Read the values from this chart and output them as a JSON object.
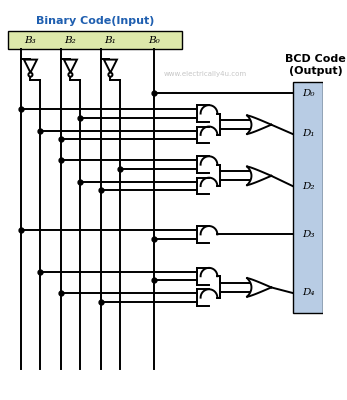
{
  "title": "Binary Code(Input)",
  "output_title": "BCD Code\n(Output)",
  "watermark": "www.electrically4u.com",
  "input_labels": [
    "B₃",
    "B₂",
    "B₁",
    "B₀"
  ],
  "output_labels": [
    "D₀",
    "D₁",
    "D₂",
    "D₃",
    "D₄"
  ],
  "bg_color": "#ffffff",
  "input_box_color": "#dde8aa",
  "output_box_color": "#b8cce4",
  "line_color": "#000000",
  "title_color": "#1f5fb0",
  "label_color": "#000000",
  "watermark_color": "#c0c0c0"
}
